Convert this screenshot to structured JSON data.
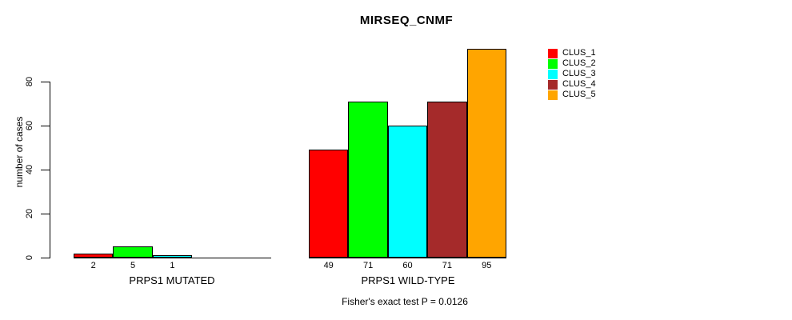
{
  "chart_data": {
    "type": "bar",
    "title": "MIRSEQ_CNMF",
    "ylabel": "number of cases",
    "yticks": [
      0,
      20,
      40,
      60,
      80
    ],
    "ylim": [
      0,
      97
    ],
    "grid": false,
    "legend_position": "top-right",
    "series": [
      {
        "name": "CLUS_1",
        "color": "#ff0000"
      },
      {
        "name": "CLUS_2",
        "color": "#00ff00"
      },
      {
        "name": "CLUS_3",
        "color": "#00ffff"
      },
      {
        "name": "CLUS_4",
        "color": "#a52a2a"
      },
      {
        "name": "CLUS_5",
        "color": "#ffa500"
      }
    ],
    "groups": [
      {
        "label": "PRPS1 MUTATED",
        "values": [
          2,
          5,
          1,
          0,
          0
        ],
        "bar_labels": [
          "2",
          "5",
          "1",
          "",
          ""
        ]
      },
      {
        "label": "PRPS1 WILD-TYPE",
        "values": [
          49,
          71,
          60,
          71,
          95
        ],
        "bar_labels": [
          "49",
          "71",
          "60",
          "71",
          "95"
        ]
      }
    ],
    "footnote": "Fisher's exact test P = 0.0126"
  }
}
